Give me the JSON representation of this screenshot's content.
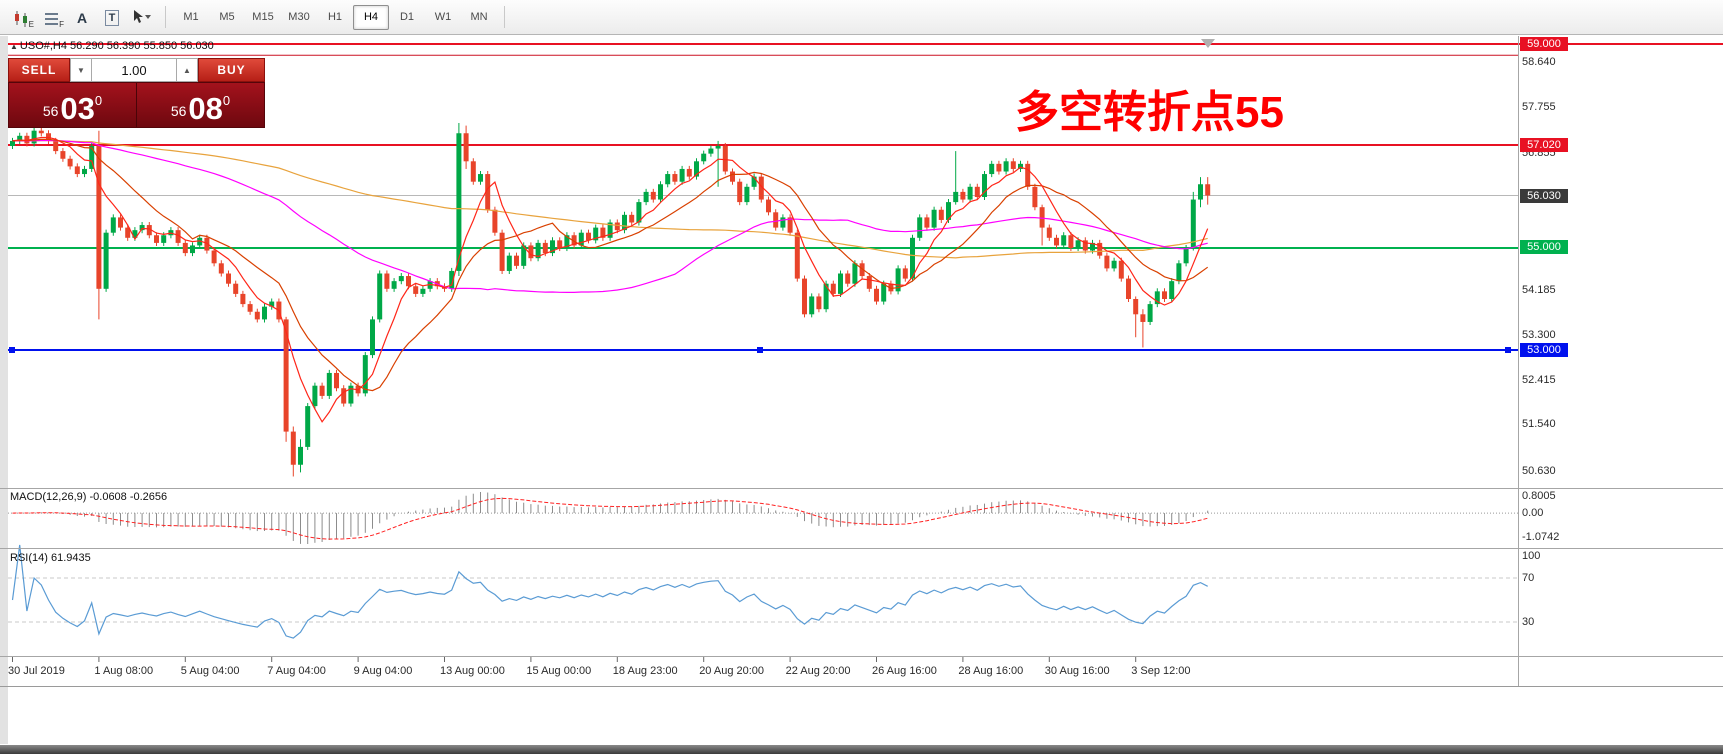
{
  "toolbar": {
    "tools": [
      {
        "name": "candles-template-tool",
        "badge": "E"
      },
      {
        "name": "lines-template-tool",
        "badge": "F"
      },
      {
        "name": "text-a-tool",
        "label": "A"
      },
      {
        "name": "text-t-tool",
        "label": "T"
      },
      {
        "name": "cursor-tool",
        "label": ""
      }
    ],
    "timeframes": [
      {
        "label": "M1"
      },
      {
        "label": "M5"
      },
      {
        "label": "M15"
      },
      {
        "label": "M30"
      },
      {
        "label": "H1"
      },
      {
        "label": "H4"
      },
      {
        "label": "D1"
      },
      {
        "label": "W1"
      },
      {
        "label": "MN"
      }
    ],
    "active_timeframe": "H4"
  },
  "chart": {
    "symbol_label": "USO#,H4 56.290 56.390 55.850 56.030",
    "annotation": "多空转折点55",
    "trade_panel": {
      "sell_label": "SELL",
      "buy_label": "BUY",
      "lot": "1.00",
      "bid": {
        "figure": "56",
        "pips": "03",
        "sup": "0"
      },
      "ask": {
        "figure": "56",
        "pips": "08",
        "sup": "0"
      }
    },
    "badges": [
      {
        "label": "59.000",
        "type": "red"
      },
      {
        "label": "57.020",
        "type": "red"
      },
      {
        "label": "56.030",
        "type": "dark"
      },
      {
        "label": "55.000",
        "type": "green"
      },
      {
        "label": "53.000",
        "type": "blue"
      }
    ]
  },
  "chart_data": {
    "type": "candlestick",
    "symbol": "USO#",
    "timeframe": "H4",
    "ohlc_label": {
      "open": "56.290",
      "high": "56.390",
      "low": "55.850",
      "close": "56.030"
    },
    "current_price": 56.03,
    "first_open": 57.0,
    "closes": [
      57.1,
      57.2,
      57.05,
      57.3,
      57.25,
      57.1,
      56.9,
      56.75,
      56.6,
      56.45,
      56.55,
      57.0,
      54.2,
      55.3,
      55.6,
      55.4,
      55.2,
      55.35,
      55.45,
      55.25,
      55.1,
      55.25,
      55.35,
      55.1,
      54.9,
      55.05,
      55.2,
      54.95,
      54.7,
      54.5,
      54.3,
      54.1,
      53.9,
      53.75,
      53.6,
      53.85,
      53.95,
      53.6,
      51.4,
      50.75,
      51.1,
      51.9,
      52.3,
      52.1,
      52.55,
      52.25,
      51.95,
      52.3,
      52.15,
      52.9,
      53.6,
      54.5,
      54.2,
      54.35,
      54.45,
      54.25,
      54.1,
      54.2,
      54.35,
      54.25,
      54.2,
      54.55,
      57.25,
      56.7,
      56.3,
      56.45,
      55.75,
      55.3,
      54.55,
      54.85,
      54.65,
      55.05,
      54.8,
      55.1,
      54.9,
      55.15,
      55.0,
      55.25,
      55.05,
      55.3,
      55.15,
      55.4,
      55.2,
      55.5,
      55.35,
      55.65,
      55.5,
      55.9,
      56.1,
      55.95,
      56.25,
      56.45,
      56.3,
      56.55,
      56.4,
      56.7,
      56.85,
      56.95,
      57.0,
      56.5,
      56.3,
      55.9,
      56.2,
      56.4,
      55.95,
      55.7,
      55.4,
      55.6,
      55.3,
      54.4,
      53.7,
      54.05,
      53.8,
      54.3,
      54.1,
      54.5,
      54.3,
      54.7,
      54.45,
      54.2,
      53.95,
      54.3,
      54.15,
      54.6,
      54.4,
      55.2,
      55.6,
      55.4,
      55.75,
      55.55,
      55.9,
      56.1,
      55.95,
      56.2,
      56.0,
      56.45,
      56.65,
      56.5,
      56.7,
      56.55,
      56.65,
      56.2,
      55.8,
      55.4,
      55.2,
      55.05,
      55.25,
      55.0,
      55.15,
      54.95,
      55.1,
      54.85,
      54.6,
      54.75,
      54.4,
      54.0,
      53.7,
      53.55,
      53.9,
      54.15,
      54.0,
      54.35,
      54.7,
      55.0,
      55.95,
      56.25,
      56.03
    ],
    "wick_overrides": {
      "12": [
        57.3,
        53.6
      ],
      "38": [
        53.65,
        51.2
      ],
      "39": [
        51.5,
        50.52
      ],
      "40": [
        51.25,
        50.6
      ],
      "62": [
        57.45,
        54.45
      ],
      "63": [
        57.4,
        56.55
      ],
      "98": [
        57.1,
        56.2
      ],
      "131": [
        56.9,
        55.85
      ],
      "143": [
        55.85,
        55.05
      ],
      "156": [
        54.05,
        53.25
      ],
      "157": [
        53.8,
        53.05
      ],
      "164": [
        56.1,
        54.95
      ],
      "165": [
        56.39,
        55.8
      ],
      "166": [
        56.39,
        55.85
      ]
    },
    "levels": [
      {
        "price": 59.0,
        "label": "59.000",
        "color": "#e81123",
        "width": 2,
        "full": true
      },
      {
        "price": 58.78,
        "label": "",
        "color": "#cc1122",
        "width": 1,
        "full": false
      },
      {
        "price": 57.02,
        "label": "57.020",
        "color": "#e81123",
        "width": 2,
        "full": false
      },
      {
        "price": 55.0,
        "label": "55.000",
        "color": "#00b14f",
        "width": 2,
        "full": false
      },
      {
        "price": 53.0,
        "label": "53.000",
        "color": "#0011ee",
        "width": 2,
        "full": false,
        "handles": true
      }
    ],
    "price_axis_labels": [
      "58.640",
      "57.755",
      "56.855",
      "54.185",
      "53.300",
      "52.415",
      "51.540",
      "50.630"
    ],
    "time_labels": [
      {
        "index": 0,
        "text": "30 Jul 2019"
      },
      {
        "index": 12,
        "text": "1 Aug 08:00"
      },
      {
        "index": 24,
        "text": "5 Aug 04:00"
      },
      {
        "index": 36,
        "text": "7 Aug 04:00"
      },
      {
        "index": 48,
        "text": "9 Aug 04:00"
      },
      {
        "index": 60,
        "text": "13 Aug 00:00"
      },
      {
        "index": 72,
        "text": "15 Aug 00:00"
      },
      {
        "index": 84,
        "text": "18 Aug 23:00"
      },
      {
        "index": 96,
        "text": "20 Aug 20:00"
      },
      {
        "index": 108,
        "text": "22 Aug 20:00"
      },
      {
        "index": 120,
        "text": "26 Aug 16:00"
      },
      {
        "index": 132,
        "text": "28 Aug 16:00"
      },
      {
        "index": 144,
        "text": "30 Aug 16:00"
      },
      {
        "index": 156,
        "text": "3 Sep 12:00"
      }
    ],
    "moving_averages": [
      {
        "period": 6,
        "color": "#ff2619"
      },
      {
        "period": 14,
        "color": "#d94000"
      },
      {
        "period": 55,
        "color": "#ff00ff"
      },
      {
        "period": 120,
        "color": "#e8a33d"
      }
    ],
    "macd": {
      "label": "MACD(12,26,9)",
      "values_text": "-0.0608 -0.2656",
      "fast": 12,
      "slow": 26,
      "signal": 9,
      "axis": [
        "0.8005",
        "0.00",
        "-1.0742"
      ],
      "hist_color": "#8c8c8c",
      "signal_color": "#ff2222"
    },
    "rsi": {
      "label": "RSI(14)",
      "value_text": "61.9435",
      "period": 14,
      "axis": [
        "100",
        "70",
        "30"
      ],
      "levels": [
        70,
        30
      ],
      "color": "#5a9bd4"
    },
    "colors": {
      "bull": "#00a847",
      "bear": "#e8442a",
      "current_price_line": "#b8b8b8",
      "annotation": "#ff0000"
    }
  }
}
